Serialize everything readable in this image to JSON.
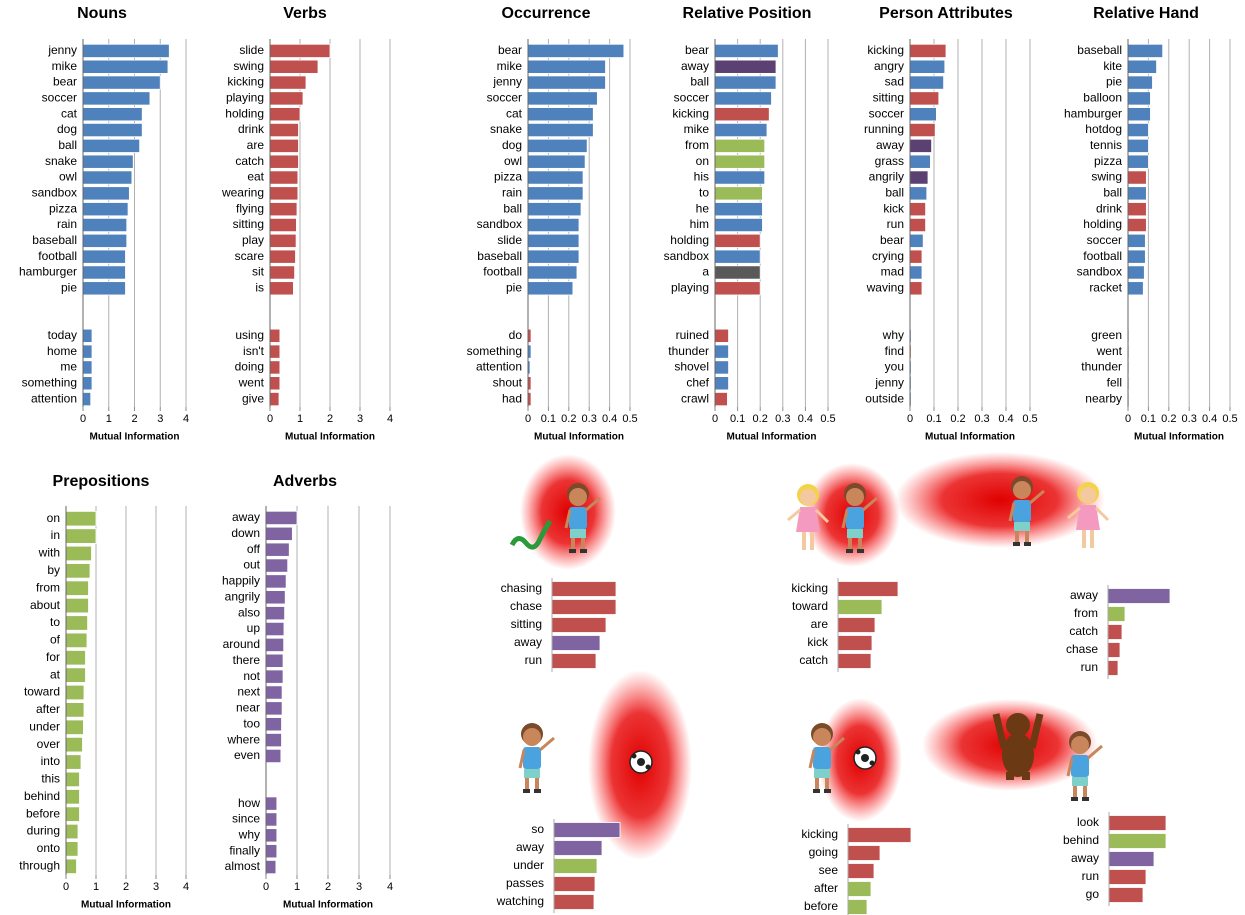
{
  "chart_data": [
    {
      "type": "barh",
      "title": "Nouns",
      "xlabel": "Mutual Information",
      "xlim": [
        0,
        4
      ],
      "xticks": [
        0,
        1,
        2,
        3,
        4
      ],
      "grid": true,
      "categories": [
        "jenny",
        "mike",
        "bear",
        "soccer",
        "cat",
        "dog",
        "ball",
        "snake",
        "owl",
        "sandbox",
        "pizza",
        "rain",
        "baseball",
        "football",
        "hamburger",
        "pie",
        null,
        "today",
        "home",
        "me",
        "something",
        "attention"
      ],
      "values": [
        3.35,
        3.3,
        3.0,
        2.6,
        2.3,
        2.3,
        2.2,
        1.95,
        1.9,
        1.8,
        1.75,
        1.7,
        1.7,
        1.65,
        1.65,
        1.65,
        null,
        0.35,
        0.35,
        0.35,
        0.35,
        0.3
      ],
      "colors": [
        "#4f81bd",
        "#4f81bd",
        "#4f81bd",
        "#4f81bd",
        "#4f81bd",
        "#4f81bd",
        "#4f81bd",
        "#4f81bd",
        "#4f81bd",
        "#4f81bd",
        "#4f81bd",
        "#4f81bd",
        "#4f81bd",
        "#4f81bd",
        "#4f81bd",
        "#4f81bd",
        null,
        "#4f81bd",
        "#4f81bd",
        "#4f81bd",
        "#4f81bd",
        "#4f81bd"
      ]
    },
    {
      "type": "barh",
      "title": "Verbs",
      "xlabel": "Mutual Information",
      "xlim": [
        0,
        4
      ],
      "xticks": [
        0,
        1,
        2,
        3,
        4
      ],
      "grid": true,
      "categories": [
        "slide",
        "swing",
        "kicking",
        "playing",
        "holding",
        "drink",
        "are",
        "catch",
        "eat",
        "wearing",
        "flying",
        "sitting",
        "play",
        "scare",
        "sit",
        "is",
        null,
        "using",
        "isn't",
        "doing",
        "went",
        "give"
      ],
      "values": [
        2.0,
        1.6,
        1.2,
        1.1,
        1.0,
        0.95,
        0.95,
        0.95,
        0.93,
        0.93,
        0.9,
        0.88,
        0.87,
        0.85,
        0.82,
        0.78,
        null,
        0.33,
        0.33,
        0.33,
        0.33,
        0.3
      ],
      "colors": [
        "#c0504d",
        "#c0504d",
        "#c0504d",
        "#c0504d",
        "#c0504d",
        "#c0504d",
        "#c0504d",
        "#c0504d",
        "#c0504d",
        "#c0504d",
        "#c0504d",
        "#c0504d",
        "#c0504d",
        "#c0504d",
        "#c0504d",
        "#c0504d",
        null,
        "#c0504d",
        "#c0504d",
        "#c0504d",
        "#c0504d",
        "#c0504d"
      ]
    },
    {
      "type": "barh",
      "title": "Occurrence",
      "xlabel": "Mutual Information",
      "xlim": [
        0,
        0.5
      ],
      "xticks": [
        0,
        0.1,
        0.2,
        0.3,
        0.4,
        0.5
      ],
      "grid": true,
      "categories": [
        "bear",
        "mike",
        "jenny",
        "soccer",
        "cat",
        "snake",
        "dog",
        "owl",
        "pizza",
        "rain",
        "ball",
        "sandbox",
        "slide",
        "baseball",
        "football",
        "pie",
        null,
        "do",
        "something",
        "attention",
        "shout",
        "had"
      ],
      "values": [
        0.47,
        0.38,
        0.38,
        0.34,
        0.32,
        0.32,
        0.29,
        0.28,
        0.27,
        0.27,
        0.26,
        0.25,
        0.25,
        0.25,
        0.24,
        0.22,
        null,
        0.015,
        0.015,
        0.01,
        0.015,
        0.015
      ],
      "colors": [
        "#4f81bd",
        "#4f81bd",
        "#4f81bd",
        "#4f81bd",
        "#4f81bd",
        "#4f81bd",
        "#4f81bd",
        "#4f81bd",
        "#4f81bd",
        "#4f81bd",
        "#4f81bd",
        "#4f81bd",
        "#4f81bd",
        "#4f81bd",
        "#4f81bd",
        "#4f81bd",
        null,
        "#c0504d",
        "#4f81bd",
        "#4f81bd",
        "#c0504d",
        "#c0504d"
      ]
    },
    {
      "type": "barh",
      "title": "Relative Position",
      "xlabel": "Mutual Information",
      "xlim": [
        0,
        0.5
      ],
      "xticks": [
        0,
        0.1,
        0.2,
        0.3,
        0.4,
        0.5
      ],
      "grid": true,
      "categories": [
        "bear",
        "away",
        "ball",
        "soccer",
        "kicking",
        "mike",
        "from",
        "on",
        "his",
        "to",
        "he",
        "him",
        "holding",
        "sandbox",
        "a",
        "playing",
        null,
        "ruined",
        "thunder",
        "shovel",
        "chef",
        "crawl"
      ],
      "values": [
        0.28,
        0.27,
        0.27,
        0.25,
        0.24,
        0.23,
        0.22,
        0.22,
        0.22,
        0.21,
        0.21,
        0.21,
        0.2,
        0.2,
        0.2,
        0.2,
        null,
        0.06,
        0.06,
        0.06,
        0.06,
        0.055
      ],
      "colors": [
        "#4f81bd",
        "#5b4172",
        "#4f81bd",
        "#4f81bd",
        "#c0504d",
        "#4f81bd",
        "#9bbb59",
        "#9bbb59",
        "#4f81bd",
        "#9bbb59",
        "#4f81bd",
        "#4f81bd",
        "#c0504d",
        "#4f81bd",
        "#595959",
        "#c0504d",
        null,
        "#c0504d",
        "#4f81bd",
        "#4f81bd",
        "#4f81bd",
        "#c0504d"
      ]
    },
    {
      "type": "barh",
      "title": "Person Attributes",
      "xlabel": "Mutual Information",
      "xlim": [
        0,
        0.5
      ],
      "xticks": [
        0,
        0.1,
        0.2,
        0.3,
        0.4,
        0.5
      ],
      "grid": true,
      "categories": [
        "kicking",
        "angry",
        "sad",
        "sitting",
        "soccer",
        "running",
        "away",
        "grass",
        "angrily",
        "ball",
        "kick",
        "run",
        "bear",
        "crying",
        "mad",
        "waving",
        null,
        "why",
        "find",
        "you",
        "jenny",
        "outside"
      ],
      "values": [
        0.15,
        0.145,
        0.14,
        0.12,
        0.11,
        0.105,
        0.09,
        0.085,
        0.075,
        0.07,
        0.065,
        0.065,
        0.055,
        0.05,
        0.05,
        0.05,
        null,
        0.005,
        0.005,
        0.005,
        0.005,
        0.005
      ],
      "colors": [
        "#c0504d",
        "#4f81bd",
        "#4f81bd",
        "#c0504d",
        "#4f81bd",
        "#c0504d",
        "#5b4172",
        "#4f81bd",
        "#5b4172",
        "#4f81bd",
        "#c0504d",
        "#c0504d",
        "#4f81bd",
        "#c0504d",
        "#4f81bd",
        "#c0504d",
        null,
        "#4f81bd",
        "#c0504d",
        "#4f81bd",
        "#4f81bd",
        "#4f81bd"
      ]
    },
    {
      "type": "barh",
      "title": "Relative Hand",
      "xlabel": "Mutual Information",
      "xlim": [
        0,
        0.5
      ],
      "xticks": [
        0,
        0.1,
        0.2,
        0.3,
        0.4,
        0.5
      ],
      "grid": true,
      "categories": [
        "baseball",
        "kite",
        "pie",
        "balloon",
        "hamburger",
        "hotdog",
        "tennis",
        "pizza",
        "swing",
        "ball",
        "drink",
        "holding",
        "soccer",
        "football",
        "sandbox",
        "racket",
        null,
        "green",
        "went",
        "thunder",
        "fell",
        "nearby"
      ],
      "values": [
        0.17,
        0.14,
        0.12,
        0.11,
        0.11,
        0.1,
        0.1,
        0.1,
        0.09,
        0.09,
        0.09,
        0.09,
        0.085,
        0.085,
        0.08,
        0.075,
        null,
        0.005,
        0.005,
        0.005,
        0.005,
        0.005
      ],
      "colors": [
        "#4f81bd",
        "#4f81bd",
        "#4f81bd",
        "#4f81bd",
        "#4f81bd",
        "#4f81bd",
        "#4f81bd",
        "#4f81bd",
        "#c0504d",
        "#4f81bd",
        "#c0504d",
        "#c0504d",
        "#4f81bd",
        "#4f81bd",
        "#4f81bd",
        "#4f81bd",
        null,
        "#4f81bd",
        "#c0504d",
        "#4f81bd",
        "#c0504d",
        "#4f81bd"
      ]
    },
    {
      "type": "barh",
      "title": "Prepositions",
      "xlabel": "Mutual Information",
      "xlim": [
        0,
        4
      ],
      "xticks": [
        0,
        1,
        2,
        3,
        4
      ],
      "grid": true,
      "categories": [
        "on",
        "in",
        "with",
        "by",
        "from",
        "about",
        "to",
        "of",
        "for",
        "at",
        "toward",
        "after",
        "under",
        "over",
        "into",
        "this",
        "behind",
        "before",
        "during",
        "onto",
        "through"
      ],
      "values": [
        1.0,
        1.0,
        0.85,
        0.8,
        0.75,
        0.75,
        0.72,
        0.7,
        0.65,
        0.65,
        0.6,
        0.6,
        0.58,
        0.55,
        0.5,
        0.45,
        0.45,
        0.45,
        0.4,
        0.4,
        0.35
      ],
      "colors": [
        "#9bbb59",
        "#9bbb59",
        "#9bbb59",
        "#9bbb59",
        "#9bbb59",
        "#9bbb59",
        "#9bbb59",
        "#9bbb59",
        "#9bbb59",
        "#9bbb59",
        "#9bbb59",
        "#9bbb59",
        "#9bbb59",
        "#9bbb59",
        "#9bbb59",
        "#9bbb59",
        "#9bbb59",
        "#9bbb59",
        "#9bbb59",
        "#9bbb59",
        "#9bbb59"
      ]
    },
    {
      "type": "barh",
      "title": "Adverbs",
      "xlabel": "Mutual Information",
      "xlim": [
        0,
        4
      ],
      "xticks": [
        0,
        1,
        2,
        3,
        4
      ],
      "grid": true,
      "categories": [
        "away",
        "down",
        "off",
        "out",
        "happily",
        "angrily",
        "also",
        "up",
        "around",
        "there",
        "not",
        "next",
        "near",
        "too",
        "where",
        "even",
        null,
        "how",
        "since",
        "why",
        "finally",
        "almost"
      ],
      "values": [
        1.0,
        0.85,
        0.75,
        0.7,
        0.65,
        0.62,
        0.6,
        0.58,
        0.57,
        0.55,
        0.55,
        0.52,
        0.52,
        0.5,
        0.5,
        0.48,
        null,
        0.35,
        0.35,
        0.35,
        0.35,
        0.32
      ],
      "colors": [
        "#8064a2",
        "#8064a2",
        "#8064a2",
        "#8064a2",
        "#8064a2",
        "#8064a2",
        "#8064a2",
        "#8064a2",
        "#8064a2",
        "#8064a2",
        "#8064a2",
        "#8064a2",
        "#8064a2",
        "#8064a2",
        "#8064a2",
        "#8064a2",
        null,
        "#8064a2",
        "#8064a2",
        "#8064a2",
        "#8064a2",
        "#8064a2"
      ]
    },
    {
      "type": "barh",
      "categories": [
        "chasing",
        "chase",
        "sitting",
        "away",
        "run"
      ],
      "values": [
        0.64,
        0.64,
        0.54,
        0.48,
        0.44
      ],
      "colors": [
        "#c0504d",
        "#c0504d",
        "#c0504d",
        "#8064a2",
        "#c0504d"
      ]
    },
    {
      "type": "barh",
      "categories": [
        "kicking",
        "toward",
        "are",
        "kick",
        "catch"
      ],
      "values": [
        0.6,
        0.44,
        0.37,
        0.34,
        0.33
      ],
      "colors": [
        "#c0504d",
        "#9bbb59",
        "#c0504d",
        "#c0504d",
        "#c0504d"
      ]
    },
    {
      "type": "barh",
      "categories": [
        "away",
        "from",
        "catch",
        "chase",
        "run"
      ],
      "values": [
        0.62,
        0.17,
        0.14,
        0.12,
        0.1
      ],
      "colors": [
        "#8064a2",
        "#9bbb59",
        "#c0504d",
        "#c0504d",
        "#c0504d"
      ]
    },
    {
      "type": "barh",
      "categories": [
        "so",
        "away",
        "under",
        "passes",
        "watching"
      ],
      "values": [
        0.66,
        0.48,
        0.43,
        0.41,
        0.4
      ],
      "colors": [
        "#8064a2",
        "#8064a2",
        "#9bbb59",
        "#c0504d",
        "#c0504d"
      ]
    },
    {
      "type": "barh",
      "categories": [
        "kicking",
        "going",
        "see",
        "after",
        "before"
      ],
      "values": [
        0.63,
        0.32,
        0.26,
        0.23,
        0.19
      ],
      "colors": [
        "#c0504d",
        "#c0504d",
        "#c0504d",
        "#9bbb59",
        "#9bbb59"
      ]
    },
    {
      "type": "barh",
      "categories": [
        "look",
        "behind",
        "away",
        "run",
        "go"
      ],
      "values": [
        0.57,
        0.57,
        0.45,
        0.37,
        0.34
      ],
      "colors": [
        "#c0504d",
        "#9bbb59",
        "#8064a2",
        "#c0504d",
        "#c0504d"
      ]
    }
  ]
}
